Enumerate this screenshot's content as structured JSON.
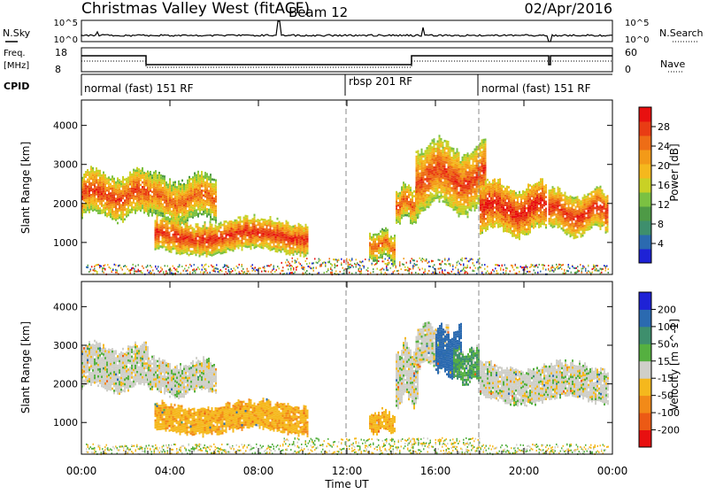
{
  "header": {
    "station": "Christmas Valley West (fitACF)",
    "beam": "Beam 12",
    "date": "02/Apr/2016"
  },
  "strip_labels": {
    "nsky": "N.Sky",
    "nsky_ticks": [
      "10^5",
      "10^0"
    ],
    "nsearch": "N.Search",
    "nsearch_ticks": [
      "10^5",
      "10^0"
    ],
    "freq": "Freq.",
    "freq_unit": "[MHz]",
    "freq_ticks": [
      "18",
      "8"
    ],
    "nave": "Nave",
    "nave_ticks": [
      "60",
      "0"
    ],
    "cpid": "CPID"
  },
  "cpid_segments": [
    {
      "label": "normal (fast) 151 RF",
      "start_hr": 0
    },
    {
      "label": "rbsp 201 RF",
      "start_hr": 12
    },
    {
      "label": "normal (fast) 151 RF",
      "start_hr": 18
    }
  ],
  "time_axis": {
    "label": "Time UT",
    "ticks": [
      "00:00",
      "04:00",
      "08:00",
      "12:00",
      "16:00",
      "20:00",
      "00:00"
    ],
    "tick_hours": [
      0,
      4,
      8,
      12,
      16,
      20,
      24
    ]
  },
  "range_axis": {
    "label": "Slant Range [km]",
    "ticks": [
      "1000",
      "2000",
      "3000",
      "4000"
    ],
    "tick_values": [
      1000,
      2000,
      3000,
      4000
    ],
    "min": 180,
    "max": 4650
  },
  "colorbars": {
    "power": {
      "label": "Power [dB]",
      "ticks": [
        "4",
        "8",
        "12",
        "16",
        "20",
        "24",
        "28"
      ],
      "colors": [
        "#1e22d6",
        "#2b6ab0",
        "#3e8f6d",
        "#4e9a46",
        "#7bc142",
        "#c9d125",
        "#f5b81d",
        "#f39a18",
        "#ee6d16",
        "#e93c14",
        "#e81010"
      ]
    },
    "velocity": {
      "label": "Velocity [m s^-1]",
      "ticks": [
        "200",
        "100",
        "50",
        "15",
        "-15",
        "-50",
        "-100",
        "-200"
      ],
      "colors": [
        "#1e22d6",
        "#2b6ab0",
        "#3e8f6d",
        "#55b040",
        "#cfcfc9",
        "#f5b81d",
        "#f28a18",
        "#ec5a15",
        "#e81010"
      ]
    }
  },
  "chart_data": {
    "type": "heatmap",
    "x_unit": "hours UT",
    "y_unit": "km",
    "xlim": [
      0,
      24
    ],
    "ylim": [
      180,
      4650
    ],
    "dashed_markers_hr": [
      12,
      18
    ],
    "power_regions": [
      {
        "t0": 0.0,
        "t1": 3.0,
        "r_lo": 1600,
        "r_hi": 2800,
        "db": 26
      },
      {
        "t0": 3.0,
        "t1": 6.1,
        "r_lo": 1500,
        "r_hi": 2700,
        "db": 24
      },
      {
        "t0": 3.3,
        "t1": 10.2,
        "r_lo": 700,
        "r_hi": 1600,
        "db": 27
      },
      {
        "t0": 13.0,
        "t1": 14.2,
        "r_lo": 500,
        "r_hi": 1300,
        "db": 24
      },
      {
        "t0": 14.2,
        "t1": 15.2,
        "r_lo": 1500,
        "r_hi": 2500,
        "db": 25
      },
      {
        "t0": 15.1,
        "t1": 18.3,
        "r_lo": 1800,
        "r_hi": 3500,
        "db": 26
      },
      {
        "t0": 18.0,
        "t1": 21.0,
        "r_lo": 1200,
        "r_hi": 2500,
        "db": 28
      },
      {
        "t0": 21.1,
        "t1": 23.8,
        "r_lo": 1200,
        "r_hi": 2300,
        "db": 27
      }
    ],
    "velocity_regions": [
      {
        "t0": 0.0,
        "t1": 3.0,
        "r_lo": 1800,
        "r_hi": 3000,
        "v": 0
      },
      {
        "t0": 3.0,
        "t1": 6.1,
        "r_lo": 1700,
        "r_hi": 2600,
        "v": 0
      },
      {
        "t0": 3.3,
        "t1": 10.2,
        "r_lo": 700,
        "r_hi": 1500,
        "v": -40
      },
      {
        "t0": 13.0,
        "t1": 14.2,
        "r_lo": 700,
        "r_hi": 1300,
        "v": -40
      },
      {
        "t0": 14.2,
        "t1": 15.2,
        "r_lo": 1500,
        "r_hi": 3000,
        "v": 0
      },
      {
        "t0": 15.1,
        "t1": 16.6,
        "r_lo": 2400,
        "r_hi": 3500,
        "v": 0
      },
      {
        "t0": 16.0,
        "t1": 17.2,
        "r_lo": 2200,
        "r_hi": 3400,
        "v": 150
      },
      {
        "t0": 16.8,
        "t1": 18.0,
        "r_lo": 2000,
        "r_hi": 2900,
        "v": 30
      },
      {
        "t0": 18.0,
        "t1": 23.8,
        "r_lo": 1500,
        "r_hi": 2500,
        "v": 0
      }
    ]
  }
}
